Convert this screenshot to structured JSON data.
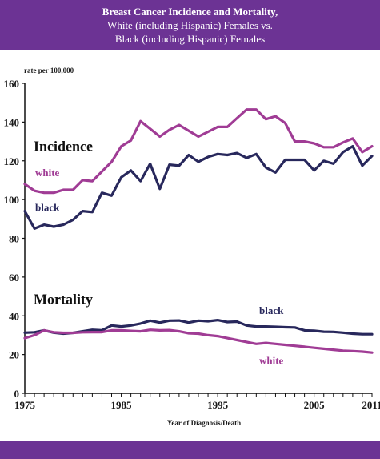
{
  "header": {
    "title_line1": "Breast Cancer Incidence and Mortality,",
    "title_line2": "White (including Hispanic) Females vs.",
    "title_line3": "Black (including Hispanic) Females"
  },
  "colors": {
    "header_bg": "#6c3394",
    "white_series": "#a03c95",
    "black_series": "#28285c",
    "axis": "#111111"
  },
  "chart_data": {
    "type": "line",
    "title": "Breast Cancer Incidence and Mortality, White (including Hispanic) Females vs. Black (including Hispanic) Females",
    "ylabel": "rate per 100,000",
    "xlabel": "Year of Diagnosis/Death",
    "xlim": [
      1975,
      2011
    ],
    "ylim": [
      0,
      160
    ],
    "xticks": [
      "1975",
      "1985",
      "1995",
      "2005",
      "2011"
    ],
    "yticks": [
      "0",
      "20",
      "40",
      "60",
      "80",
      "100",
      "120",
      "140",
      "160"
    ],
    "grid": false,
    "annotations": {
      "incidence": "Incidence",
      "mortality": "Mortality"
    },
    "x": [
      1975,
      1976,
      1977,
      1978,
      1979,
      1980,
      1981,
      1982,
      1983,
      1984,
      1985,
      1986,
      1987,
      1988,
      1989,
      1990,
      1991,
      1992,
      1993,
      1994,
      1995,
      1996,
      1997,
      1998,
      1999,
      2000,
      2001,
      2002,
      2003,
      2004,
      2005,
      2006,
      2007,
      2008,
      2009,
      2010,
      2011
    ],
    "series": [
      {
        "name": "white",
        "group": "Incidence",
        "color": "#a03c95",
        "values": [
          108,
          104.5,
          103.5,
          103.5,
          105,
          105,
          110,
          109.5,
          114.5,
          119.5,
          127.5,
          130.5,
          140.5,
          136.5,
          132.5,
          136,
          138.5,
          135.5,
          132.5,
          135,
          137.5,
          137.5,
          142,
          146.5,
          146.5,
          141.5,
          143,
          139.5,
          130,
          130,
          129,
          127,
          127,
          129.5,
          131.5,
          124.5,
          127.5
        ]
      },
      {
        "name": "black",
        "group": "Incidence",
        "color": "#28285c",
        "values": [
          94,
          85,
          87,
          86,
          87,
          89.5,
          94,
          93.5,
          103.5,
          102,
          111.5,
          115,
          109.5,
          118.5,
          105.5,
          118,
          117.5,
          123,
          119.5,
          122,
          123.5,
          123,
          124,
          121.5,
          123.5,
          116.5,
          114,
          120.5,
          120.5,
          120.5,
          115,
          120,
          118.5,
          124.5,
          127.5,
          117.5,
          122.5
        ]
      },
      {
        "name": "black",
        "group": "Mortality",
        "color": "#28285c",
        "values": [
          31.3,
          31.5,
          32.5,
          31.3,
          30.8,
          31.2,
          32,
          32.8,
          32.5,
          35,
          34.5,
          35,
          36,
          37.5,
          36.5,
          37.5,
          37.6,
          36.5,
          37.5,
          37.2,
          37.8,
          36.8,
          37,
          35,
          34.5,
          34.5,
          34.3,
          34.1,
          34,
          32.5,
          32.3,
          31.8,
          31.7,
          31.3,
          30.8,
          30.5,
          30.5
        ]
      },
      {
        "name": "white",
        "group": "Mortality",
        "color": "#a03c95",
        "values": [
          28.5,
          30,
          32.5,
          31.5,
          31.2,
          31.2,
          31.5,
          31.6,
          31.6,
          32.5,
          32.5,
          32.2,
          32,
          32.8,
          32.5,
          32.6,
          32,
          31,
          30.8,
          30,
          29.5,
          28.5,
          27.5,
          26.5,
          25.5,
          26,
          25.5,
          25,
          24.5,
          24,
          23.5,
          23,
          22.5,
          22,
          21.8,
          21.5,
          21
        ]
      }
    ]
  }
}
